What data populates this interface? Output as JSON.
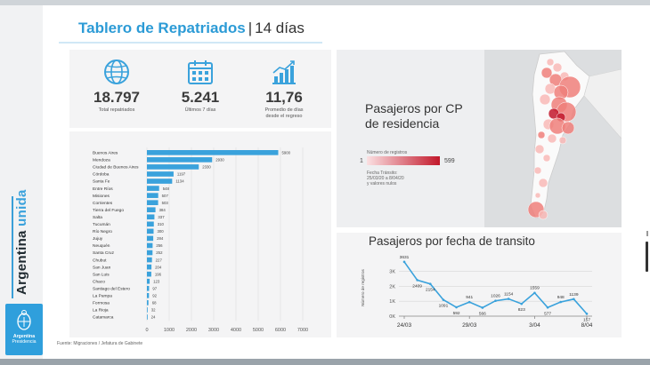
{
  "header": {
    "title": "Tablero de Repatriados",
    "separator": "|",
    "subtitle": "14 días"
  },
  "brand": {
    "vertical_text_main": "Argentina",
    "vertical_text_accent": "unida",
    "logo_title": "Argentina",
    "logo_subtitle": "Presidencia",
    "accent_color": "#2f9fdc"
  },
  "kpis": [
    {
      "icon": "globe-icon",
      "value": "18.797",
      "label_line1": "Total repatriados",
      "label_line2": ""
    },
    {
      "icon": "calendar-icon",
      "value": "5.241",
      "label_line1": "Últimos 7 días",
      "label_line2": ""
    },
    {
      "icon": "growth-chart-icon",
      "value": "11,76",
      "label_line1": "Promedio de días",
      "label_line2": "desde el regreso"
    }
  ],
  "map": {
    "title_line1": "Pasajeros por CP",
    "title_line2": "de residencia",
    "legend_title": "Número de registros",
    "legend_min": "1",
    "legend_max": "599",
    "note_line1": "Fecha Tránsito:",
    "note_line2": "25/03/20 a 8/04/20",
    "note_line3": "y valores nulos",
    "colors": {
      "light": "#f8b8b6",
      "mid": "#ef7f7a",
      "dark": "#c2182b"
    }
  },
  "line_panel": {
    "title": "Pasajeros por fecha de transito"
  },
  "source": "Fuente: Migraciones / Jefatura de Gabinete",
  "chart_data": [
    {
      "type": "bar",
      "orientation": "horizontal",
      "categories": [
        "Buenos Aires",
        "Mendoza",
        "Ciudad de Buenos Aires",
        "Córdoba",
        "Santa Fe",
        "Entre Ríos",
        "Misiones",
        "Corrientes",
        "Tierra del Fuego",
        "Salta",
        "Tucumán",
        "Río Negro",
        "Jujuy",
        "Neuquén",
        "Santa Cruz",
        "Chubut",
        "San Juan",
        "San Luis",
        "Chaco",
        "Santiago del Estero",
        "La Pampa",
        "Formosa",
        "La Rioja",
        "Catamarca"
      ],
      "values": [
        5900,
        2930,
        2330,
        1197,
        1134,
        548,
        507,
        503,
        384,
        337,
        310,
        300,
        284,
        256,
        252,
        227,
        204,
        196,
        123,
        97,
        92,
        68,
        32,
        24
      ],
      "value_labels": [
        "5900",
        "2930",
        "2330",
        "1197",
        "1134",
        "548",
        "507",
        "503",
        "384",
        "337",
        "310",
        "300",
        "284",
        "256",
        "252",
        "227",
        "204",
        "196",
        "123",
        "97",
        "92",
        "68",
        "32",
        "24"
      ],
      "xticks": [
        "0",
        "1000",
        "2000",
        "3000",
        "4000",
        "5000",
        "6000",
        "7000"
      ],
      "xlim": [
        0,
        7000
      ],
      "color": "#3aa2dc",
      "grid": true
    },
    {
      "type": "line",
      "x_labels": [
        "24/03",
        "",
        "",
        "",
        "",
        "29/03",
        "",
        "",
        "",
        "",
        "3/04",
        "",
        "",
        "",
        "",
        "8/04"
      ],
      "values": [
        3631,
        2409,
        2154,
        1091,
        592,
        941,
        566,
        1026,
        1154,
        823,
        1559,
        577,
        948,
        1139,
        157
      ],
      "value_labels": [
        "3631",
        "2409",
        "2154",
        "1091",
        "592",
        "941",
        "566",
        "1026",
        "1154",
        "823",
        "1559",
        "577",
        "948",
        "1139",
        "157"
      ],
      "dates": [
        "24/03",
        "25/03",
        "26/03",
        "27/03",
        "28/03",
        "29/03",
        "30/03",
        "31/03",
        "1/04",
        "2/04",
        "3/04",
        "4/04",
        "5/04",
        "6/04",
        "8/04"
      ],
      "xticks": [
        "24/03",
        "29/03",
        "3/04",
        "8/04"
      ],
      "yticks": [
        "0K",
        "1K",
        "2K",
        "3K"
      ],
      "ylim": [
        0,
        3800
      ],
      "ylabel": "Número de registros",
      "color": "#3aa2dc",
      "grid": true
    }
  ]
}
